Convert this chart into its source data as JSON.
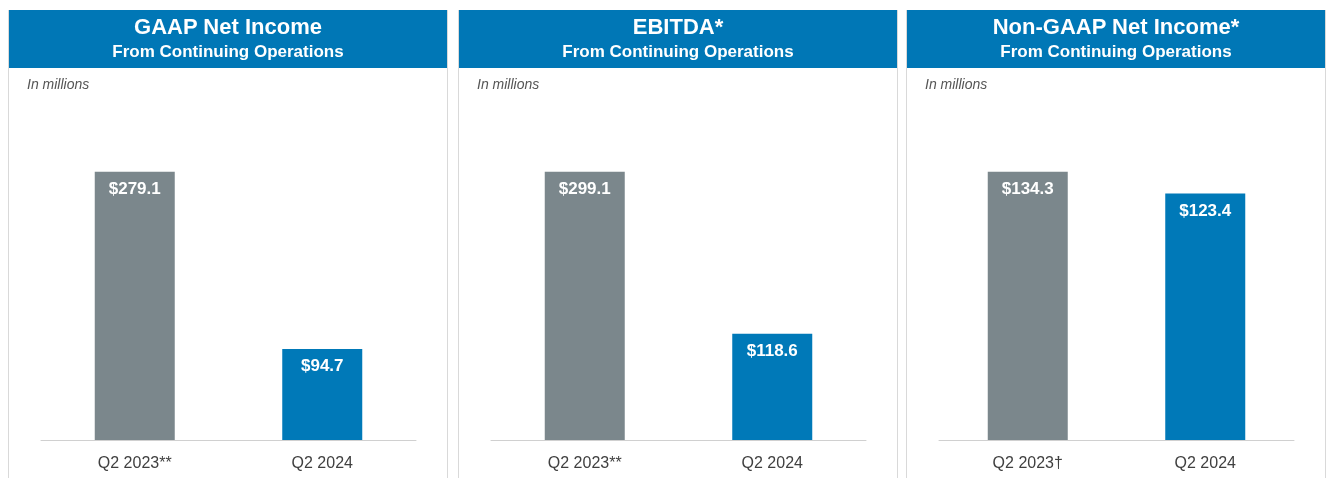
{
  "chart_data": [
    {
      "type": "bar",
      "title": "GAAP Net Income",
      "subtitle": "From Continuing Operations",
      "annotations": [
        "In millions"
      ],
      "categories": [
        "Q2 2023**",
        "Q2 2024"
      ],
      "values": [
        279.1,
        94.7
      ],
      "colors": [
        "#7b878c",
        "#0079b8"
      ],
      "value_labels": [
        "$279.1",
        "$94.7"
      ]
    },
    {
      "type": "bar",
      "title": "EBITDA*",
      "subtitle": "From Continuing Operations",
      "annotations": [
        "In millions"
      ],
      "categories": [
        "Q2 2023**",
        "Q2 2024"
      ],
      "values": [
        299.1,
        118.6
      ],
      "colors": [
        "#7b878c",
        "#0079b8"
      ],
      "value_labels": [
        "$299.1",
        "$118.6"
      ]
    },
    {
      "type": "bar",
      "title": "Non-GAAP Net Income*",
      "subtitle": "From Continuing Operations",
      "annotations": [
        "In millions"
      ],
      "categories": [
        "Q2 2023†",
        "Q2 2024"
      ],
      "values": [
        134.3,
        123.4
      ],
      "colors": [
        "#7b878c",
        "#0079b8"
      ],
      "value_labels": [
        "$134.3",
        "$123.4"
      ]
    }
  ]
}
